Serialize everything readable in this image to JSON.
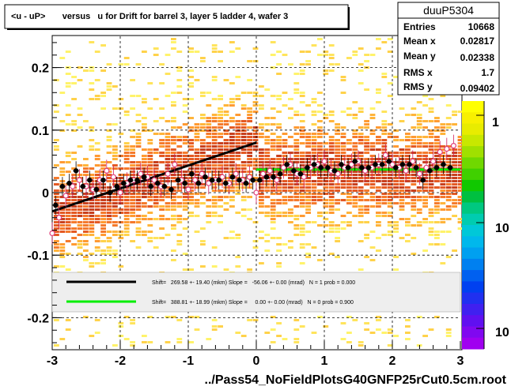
{
  "title": "<u - uP>       versus   u for Drift for barrel 3, layer 5 ladder 4, wafer 3",
  "footer": "../Pass54_NoFieldPlotsG40GNFP25rCut0.5cm.root",
  "stats": {
    "name": "duuP5304",
    "rows": [
      {
        "label": "Entries",
        "value": "10668"
      },
      {
        "label": "Mean x",
        "value": "0.02817"
      },
      {
        "label": "Mean y",
        "value": "0.02338"
      },
      {
        "label": "RMS x",
        "value": "1.7"
      },
      {
        "label": "RMS y",
        "value": "0.09402"
      }
    ]
  },
  "fits": [
    {
      "text": "Shift=   269.58 +- 19.40 (mkm) Slope =   -56.06 +- 0.00 (mrad)   N = 1 prob = 0.000",
      "color": "#000000"
    },
    {
      "text": "Shift=   388.81 +- 18.99 (mkm) Slope =     0.00 +- 0.00 (mrad)   N = 0 prob = 0.900",
      "color": "#00ee00"
    }
  ],
  "colorbar": {
    "labels": [
      "1",
      "10",
      "10"
    ]
  },
  "chart_data": {
    "type": "heatmap",
    "title": "<u - uP>       versus   u for Drift for barrel 3, layer 5 ladder 4, wafer 3",
    "xlim": [
      -3,
      3
    ],
    "ylim": [
      -0.25,
      0.25
    ],
    "xticks": [
      -3,
      -2,
      -1,
      0,
      1,
      2,
      3
    ],
    "xtick_labels": [
      "-3",
      "-2",
      "-1",
      "0",
      "1",
      "2",
      "3"
    ],
    "yticks": [
      0.2,
      0.1,
      0,
      -0.1,
      -0.2
    ],
    "ytick_labels": [
      "0.2",
      "0.1",
      "0",
      "-0.1",
      "-0.2"
    ],
    "grid": true,
    "fit_lines": [
      {
        "color": "#000000",
        "x": [
          -3,
          0
        ],
        "y": [
          -0.03,
          0.08
        ]
      },
      {
        "color": "#00ee00",
        "x": [
          0,
          3
        ],
        "y": [
          0.037,
          0.037
        ]
      }
    ],
    "profile_black": {
      "x": [
        -2.95,
        -2.85,
        -2.75,
        -2.65,
        -2.55,
        -2.45,
        -2.35,
        -2.25,
        -2.15,
        -2.05,
        -1.95,
        -1.85,
        -1.75,
        -1.65,
        -1.55,
        -1.45,
        -1.35,
        -1.25,
        -1.15,
        -1.05,
        -0.95,
        -0.85,
        -0.75,
        -0.65,
        -0.55,
        -0.45,
        -0.35,
        -0.25,
        -0.15,
        -0.05,
        0.05,
        0.15,
        0.25,
        0.35,
        0.45,
        0.55,
        0.65,
        0.75,
        0.85,
        0.95,
        1.05,
        1.15,
        1.25,
        1.35,
        1.45,
        1.55,
        1.65,
        1.75,
        1.85,
        1.95,
        2.05,
        2.15,
        2.25,
        2.35,
        2.45,
        2.55,
        2.65,
        2.75,
        2.85
      ],
      "y": [
        -0.02,
        0.01,
        0.015,
        0.035,
        0.01,
        0.02,
        0.005,
        0.02,
        0.0,
        0.01,
        0.015,
        0.02,
        0.02,
        0.025,
        0.01,
        0.015,
        0.01,
        0.005,
        0.02,
        0.015,
        0.03,
        0.015,
        0.025,
        0.02,
        0.02,
        0.015,
        0.025,
        0.02,
        0.015,
        0.02,
        0.02,
        0.025,
        0.025,
        0.03,
        0.045,
        0.035,
        0.03,
        0.04,
        0.045,
        0.04,
        0.04,
        0.035,
        0.045,
        0.04,
        0.05,
        0.04,
        0.04,
        0.045,
        0.045,
        0.05,
        0.04,
        0.045,
        0.045,
        0.04,
        0.02,
        0.035,
        0.04,
        0.045,
        0.04
      ]
    },
    "profile_pink": {
      "x": [
        -3.0,
        -2.9,
        -2.8,
        -2.7,
        -2.6,
        -2.5,
        -2.4,
        -2.3,
        -2.2,
        -2.1,
        -2.0,
        -1.9,
        -1.8,
        -1.7,
        -1.6,
        -1.5,
        -1.4,
        -1.3,
        -1.2,
        -1.1,
        -1.0,
        -0.9,
        -0.8,
        -0.7,
        -0.6,
        -0.5,
        -0.4,
        -0.3,
        -0.2,
        -0.1,
        0.0,
        0.1,
        0.2,
        0.3,
        0.4,
        0.5,
        0.6,
        0.7,
        0.8,
        0.9,
        1.0,
        1.1,
        1.2,
        1.3,
        1.4,
        1.5,
        1.6,
        1.7,
        1.8,
        1.9,
        2.0,
        2.1,
        2.2,
        2.3,
        2.4,
        2.5,
        2.6,
        2.7,
        2.8,
        2.9
      ],
      "y": [
        -0.065,
        -0.04,
        -0.005,
        0.01,
        0.02,
        0.01,
        0.005,
        0.02,
        0.035,
        0.025,
        0.0,
        0.015,
        0.02,
        0.03,
        0.025,
        0.02,
        0.01,
        0.03,
        0.045,
        0.02,
        0.005,
        0.02,
        0.03,
        0.015,
        0.02,
        0.025,
        0.015,
        0.03,
        0.02,
        0.025,
        0.0,
        0.03,
        0.035,
        0.02,
        0.04,
        0.045,
        0.03,
        0.025,
        0.04,
        0.045,
        0.05,
        0.035,
        0.03,
        0.04,
        0.045,
        0.05,
        0.035,
        0.04,
        0.045,
        0.06,
        0.045,
        0.04,
        0.035,
        0.05,
        0.03,
        0.04,
        0.05,
        0.065,
        0.07,
        0.075
      ]
    }
  }
}
